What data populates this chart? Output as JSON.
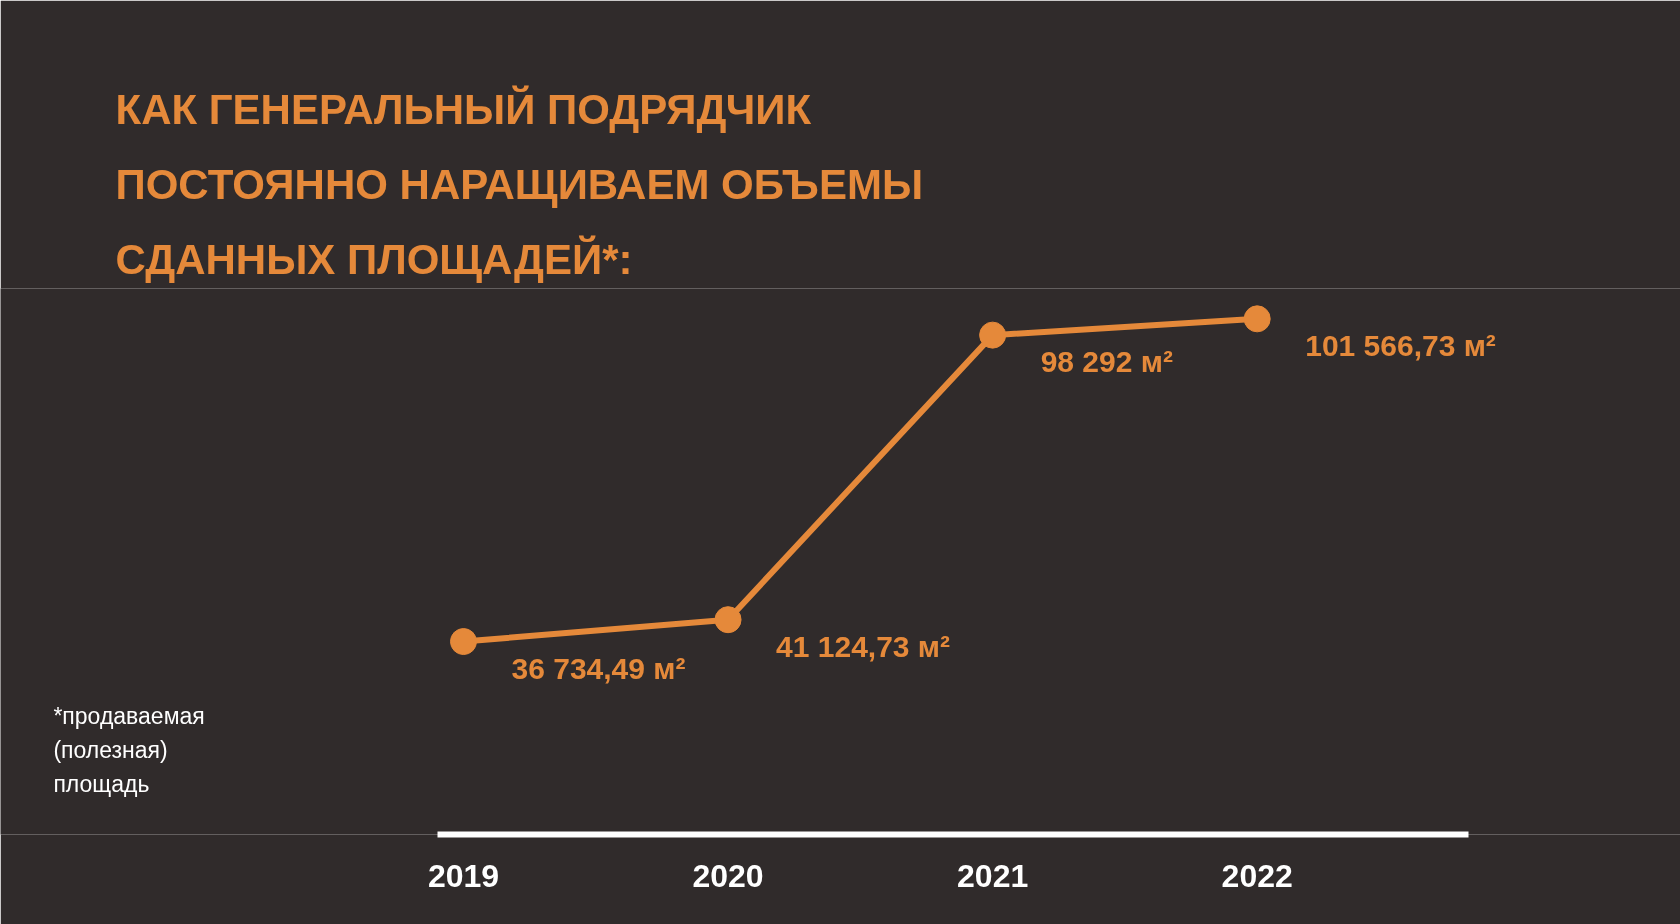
{
  "chart_data": {
    "type": "line",
    "title": "КАК ГЕНЕРАЛЬНЫЙ ПОДРЯДЧИК\nПОСТОЯННО НАРАЩИВАЕМ ОБЪЕМЫ\nСДАННЫХ ПЛОЩАДЕЙ*:",
    "categories": [
      "2019",
      "2020",
      "2021",
      "2022"
    ],
    "series": [
      {
        "color": "#e5893a",
        "values": [
          36734.49,
          41124.73,
          98292,
          101566.73
        ],
        "value_labels": [
          "36 734,49 м²",
          "41 124,73 м²",
          "98 292 м²",
          "101 566,73 м²"
        ]
      }
    ],
    "marker": "circle",
    "line_style": "solid",
    "grid": false,
    "tick_labels": "x",
    "annotations": [
      "*продаваемая\n(полезная)\nплощадь"
    ]
  }
}
